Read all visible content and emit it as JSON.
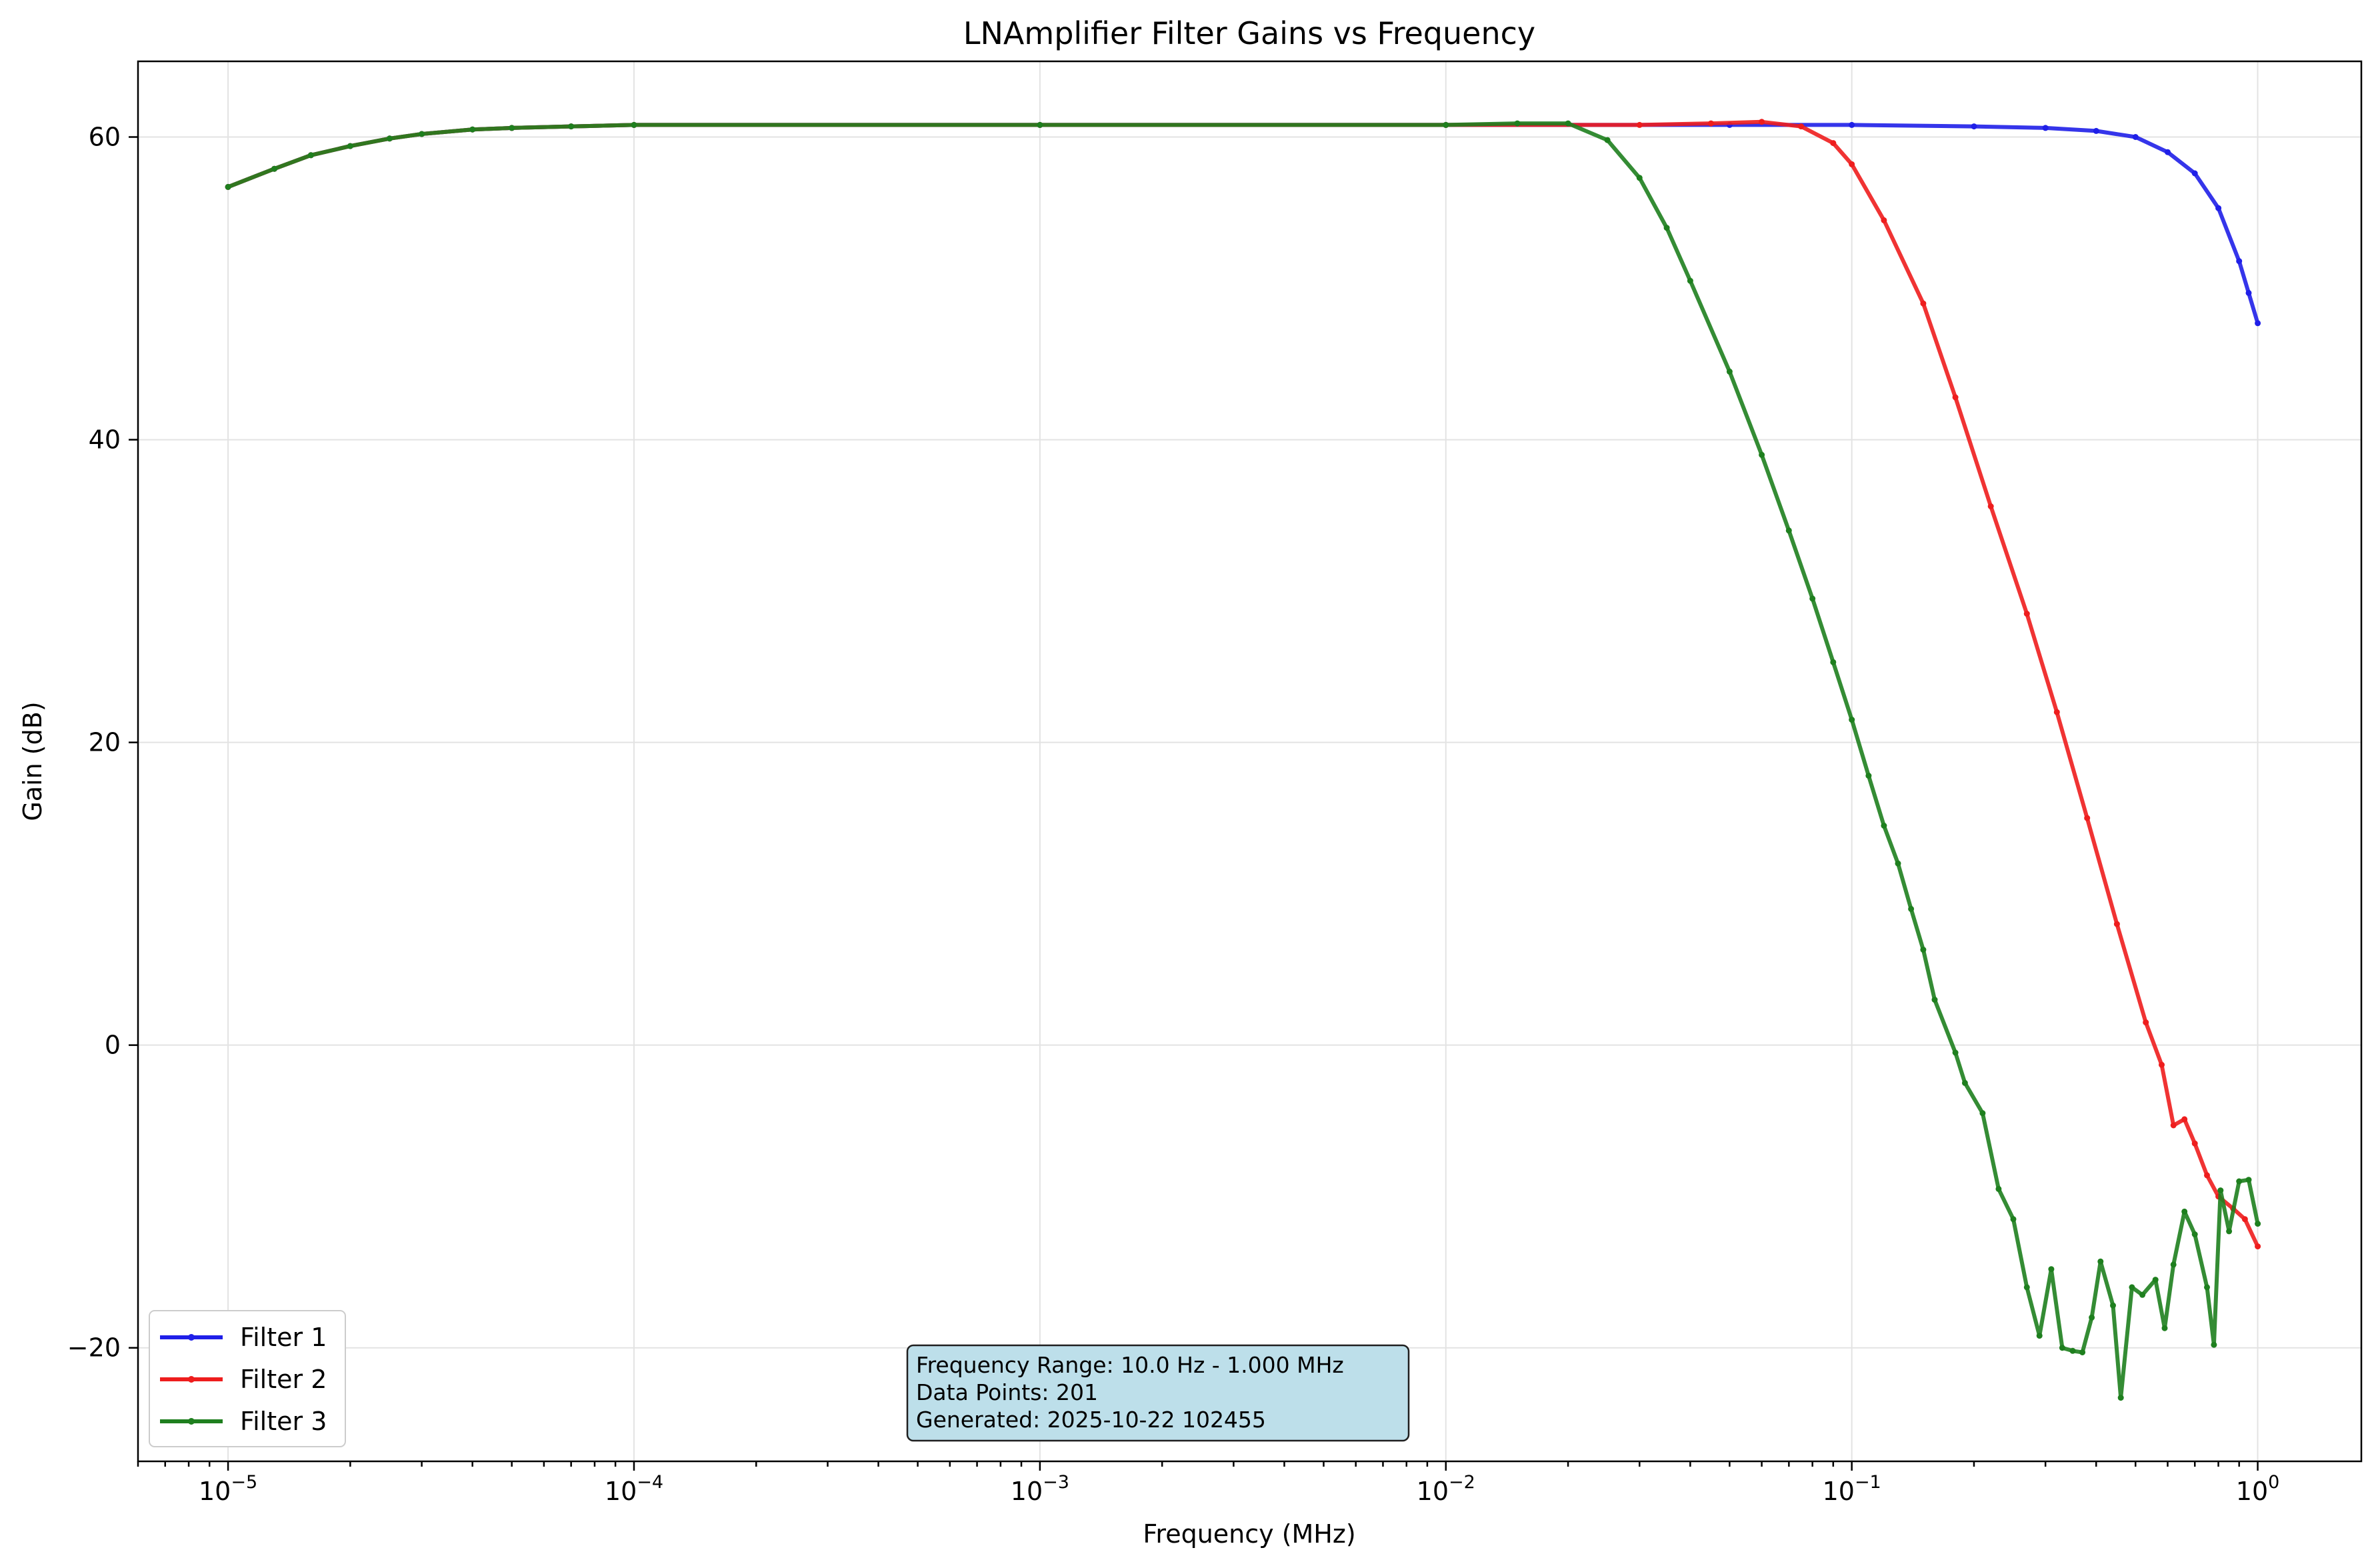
{
  "chart_data": {
    "type": "line",
    "title": "LNAmplifier Filter Gains vs Frequency",
    "xlabel": "Frequency (MHz)",
    "ylabel": "Gain (dB)",
    "xscale": "log",
    "xlim": [
      6e-06,
      1.8
    ],
    "ylim": [
      -27.5,
      65
    ],
    "grid": true,
    "legend_position": "lower-left",
    "x_ticks": [
      {
        "value": 1e-05,
        "base": "10",
        "exp": "−5"
      },
      {
        "value": 0.0001,
        "base": "10",
        "exp": "−4"
      },
      {
        "value": 0.001,
        "base": "10",
        "exp": "−3"
      },
      {
        "value": 0.01,
        "base": "10",
        "exp": "−2"
      },
      {
        "value": 0.1,
        "base": "10",
        "exp": "−1"
      },
      {
        "value": 1,
        "base": "10",
        "exp": "0"
      }
    ],
    "y_ticks": [
      {
        "value": -20,
        "label": "−20"
      },
      {
        "value": 0,
        "label": "0"
      },
      {
        "value": 20,
        "label": "20"
      },
      {
        "value": 40,
        "label": "40"
      },
      {
        "value": 60,
        "label": "60"
      }
    ],
    "series": [
      {
        "name": "Filter 1",
        "color": "#1f1fe8",
        "points": [
          [
            1e-05,
            56.7
          ],
          [
            1.3e-05,
            57.9
          ],
          [
            1.6e-05,
            58.8
          ],
          [
            2e-05,
            59.4
          ],
          [
            2.5e-05,
            59.9
          ],
          [
            3e-05,
            60.2
          ],
          [
            4e-05,
            60.5
          ],
          [
            5e-05,
            60.6
          ],
          [
            7e-05,
            60.7
          ],
          [
            0.0001,
            60.8
          ],
          [
            0.001,
            60.8
          ],
          [
            0.01,
            60.8
          ],
          [
            0.05,
            60.8
          ],
          [
            0.1,
            60.8
          ],
          [
            0.2,
            60.7
          ],
          [
            0.3,
            60.6
          ],
          [
            0.4,
            60.4
          ],
          [
            0.5,
            60.0
          ],
          [
            0.6,
            59.0
          ],
          [
            0.7,
            57.6
          ],
          [
            0.8,
            55.3
          ],
          [
            0.9,
            51.8
          ],
          [
            0.95,
            49.7
          ],
          [
            1.0,
            47.7
          ]
        ]
      },
      {
        "name": "Filter 2",
        "color": "#ee1d1d",
        "points": [
          [
            1e-05,
            56.7
          ],
          [
            1.3e-05,
            57.9
          ],
          [
            1.6e-05,
            58.8
          ],
          [
            2e-05,
            59.4
          ],
          [
            2.5e-05,
            59.9
          ],
          [
            3e-05,
            60.2
          ],
          [
            4e-05,
            60.5
          ],
          [
            5e-05,
            60.6
          ],
          [
            7e-05,
            60.7
          ],
          [
            0.0001,
            60.8
          ],
          [
            0.001,
            60.8
          ],
          [
            0.01,
            60.8
          ],
          [
            0.03,
            60.8
          ],
          [
            0.045,
            60.9
          ],
          [
            0.06,
            61.0
          ],
          [
            0.075,
            60.7
          ],
          [
            0.09,
            59.6
          ],
          [
            0.1,
            58.2
          ],
          [
            0.12,
            54.5
          ],
          [
            0.15,
            49.0
          ],
          [
            0.18,
            42.8
          ],
          [
            0.22,
            35.6
          ],
          [
            0.27,
            28.5
          ],
          [
            0.32,
            22.0
          ],
          [
            0.38,
            15.0
          ],
          [
            0.45,
            8.0
          ],
          [
            0.53,
            1.5
          ],
          [
            0.58,
            -1.3
          ],
          [
            0.62,
            -5.3
          ],
          [
            0.66,
            -4.9
          ],
          [
            0.7,
            -6.5
          ],
          [
            0.75,
            -8.6
          ],
          [
            0.8,
            -10.0
          ],
          [
            0.87,
            -10.8
          ],
          [
            0.93,
            -11.5
          ],
          [
            1.0,
            -13.3
          ]
        ]
      },
      {
        "name": "Filter 3",
        "color": "#1e7f1e",
        "points": [
          [
            1e-05,
            56.7
          ],
          [
            1.3e-05,
            57.9
          ],
          [
            1.6e-05,
            58.8
          ],
          [
            2e-05,
            59.4
          ],
          [
            2.5e-05,
            59.9
          ],
          [
            3e-05,
            60.2
          ],
          [
            4e-05,
            60.5
          ],
          [
            5e-05,
            60.6
          ],
          [
            7e-05,
            60.7
          ],
          [
            0.0001,
            60.8
          ],
          [
            0.001,
            60.8
          ],
          [
            0.01,
            60.8
          ],
          [
            0.015,
            60.9
          ],
          [
            0.02,
            60.9
          ],
          [
            0.025,
            59.8
          ],
          [
            0.03,
            57.3
          ],
          [
            0.035,
            54.0
          ],
          [
            0.04,
            50.5
          ],
          [
            0.05,
            44.5
          ],
          [
            0.06,
            39.0
          ],
          [
            0.07,
            34.0
          ],
          [
            0.08,
            29.5
          ],
          [
            0.09,
            25.3
          ],
          [
            0.1,
            21.5
          ],
          [
            0.11,
            17.8
          ],
          [
            0.12,
            14.5
          ],
          [
            0.13,
            12.0
          ],
          [
            0.14,
            9.0
          ],
          [
            0.15,
            6.3
          ],
          [
            0.16,
            3.0
          ],
          [
            0.18,
            -0.5
          ],
          [
            0.19,
            -2.5
          ],
          [
            0.21,
            -4.5
          ],
          [
            0.23,
            -9.5
          ],
          [
            0.25,
            -11.5
          ],
          [
            0.27,
            -16.0
          ],
          [
            0.29,
            -19.2
          ],
          [
            0.31,
            -14.8
          ],
          [
            0.33,
            -20.0
          ],
          [
            0.35,
            -20.2
          ],
          [
            0.37,
            -20.3
          ],
          [
            0.39,
            -18.0
          ],
          [
            0.41,
            -14.3
          ],
          [
            0.44,
            -17.2
          ],
          [
            0.46,
            -23.3
          ],
          [
            0.49,
            -16.0
          ],
          [
            0.52,
            -16.5
          ],
          [
            0.56,
            -15.5
          ],
          [
            0.59,
            -18.7
          ],
          [
            0.62,
            -14.5
          ],
          [
            0.66,
            -11.0
          ],
          [
            0.7,
            -12.5
          ],
          [
            0.75,
            -16.0
          ],
          [
            0.78,
            -19.8
          ],
          [
            0.81,
            -9.6
          ],
          [
            0.85,
            -12.3
          ],
          [
            0.9,
            -9.0
          ],
          [
            0.95,
            -8.9
          ],
          [
            1.0,
            -11.8
          ]
        ]
      }
    ],
    "annotation": {
      "lines": [
        "Frequency Range: 10.0 Hz - 1.000 MHz",
        "Data Points: 201",
        "Generated: 2025-10-22 102455"
      ],
      "background": "#bddfea"
    }
  }
}
